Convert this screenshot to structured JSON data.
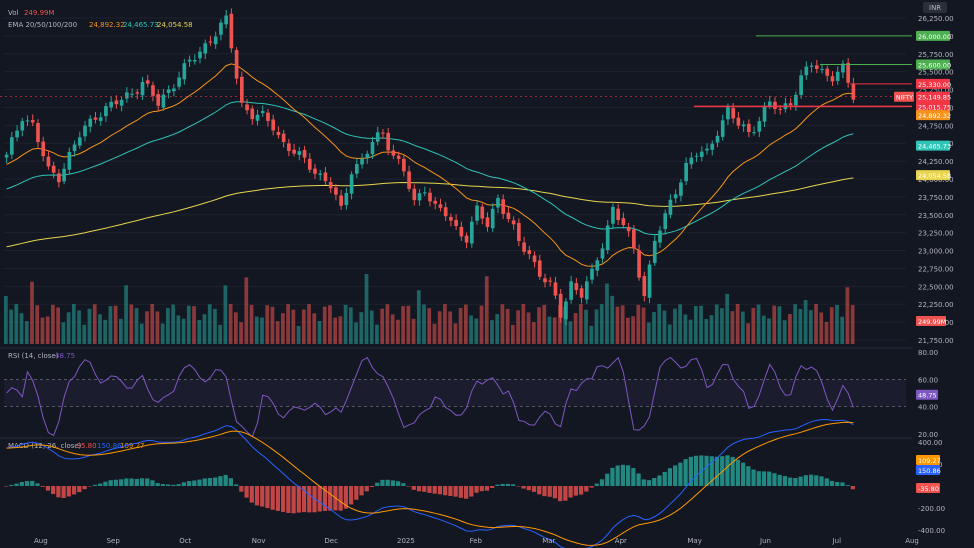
{
  "header": {
    "vol_label": "Vol",
    "vol_value": "249.99M",
    "ema_label": "EMA 20/50/100/200",
    "ema_values": [
      "24,892.32",
      "24,465.73",
      "24,054.58"
    ],
    "rsi_label": "RSI (14, close)",
    "rsi_value": "48.75",
    "macd_label": "MACD (12, 26, close)",
    "macd_values": [
      "-35.80",
      "150.86",
      "109.27"
    ],
    "currency": "INR"
  },
  "colors": {
    "background": "#131722",
    "up": "#26a69a",
    "down": "#ef5350",
    "ema20": "#f7931a",
    "ema50": "#2ec4b6",
    "ema200": "#e8d44d",
    "rsi": "#7e57c2",
    "macd_line": "#2962ff",
    "signal_line": "#ff9800",
    "green_line": "#4caf50",
    "red_line": "#f23645"
  },
  "chart_data": [
    {
      "type": "candlestick",
      "title": "",
      "x": [
        "Aug",
        "Sep",
        "Oct",
        "Nov",
        "Dec",
        "2025",
        "Feb",
        "Mar",
        "Apr",
        "May",
        "Jun",
        "Jul",
        "Aug"
      ],
      "ylim": [
        21750,
        26250
      ],
      "yticks": [
        26250,
        26000,
        25750,
        25500,
        25250,
        25000,
        24750,
        24500,
        24250,
        24000,
        23750,
        23500,
        23250,
        23000,
        22750,
        22500,
        22250,
        22000,
        21750
      ],
      "price_path": [
        [
          0,
          24300
        ],
        [
          3,
          24900
        ],
        [
          5,
          24750
        ],
        [
          8,
          24100
        ],
        [
          10,
          24050
        ],
        [
          14,
          24600
        ],
        [
          17,
          24900
        ],
        [
          22,
          25100
        ],
        [
          26,
          25350
        ],
        [
          29,
          25050
        ],
        [
          33,
          25450
        ],
        [
          36,
          25700
        ],
        [
          40,
          26050
        ],
        [
          42,
          26200
        ],
        [
          43,
          25850
        ],
        [
          45,
          25050
        ],
        [
          47,
          24900
        ],
        [
          49,
          24850
        ],
        [
          51,
          24750
        ],
        [
          53,
          24500
        ],
        [
          56,
          24300
        ],
        [
          58,
          24200
        ],
        [
          60,
          24050
        ],
        [
          62,
          23900
        ],
        [
          64,
          23550
        ],
        [
          66,
          24150
        ],
        [
          68,
          24250
        ],
        [
          70,
          24500
        ],
        [
          72,
          24650
        ],
        [
          74,
          24350
        ],
        [
          76,
          24100
        ],
        [
          78,
          23650
        ],
        [
          80,
          23900
        ],
        [
          82,
          23600
        ],
        [
          84,
          23500
        ],
        [
          86,
          23300
        ],
        [
          88,
          23200
        ],
        [
          90,
          23550
        ],
        [
          92,
          23350
        ],
        [
          94,
          23750
        ],
        [
          96,
          23450
        ],
        [
          98,
          23100
        ],
        [
          100,
          22950
        ],
        [
          102,
          22700
        ],
        [
          104,
          22500
        ],
        [
          106,
          22100
        ],
        [
          108,
          22550
        ],
        [
          110,
          22400
        ],
        [
          112,
          22650
        ],
        [
          114,
          23100
        ],
        [
          116,
          23600
        ],
        [
          118,
          23350
        ],
        [
          120,
          23000
        ],
        [
          122,
          22400
        ],
        [
          124,
          23150
        ],
        [
          126,
          23450
        ],
        [
          128,
          23850
        ],
        [
          130,
          24200
        ],
        [
          132,
          24350
        ],
        [
          134,
          24350
        ],
        [
          136,
          24700
        ],
        [
          138,
          24950
        ],
        [
          140,
          24750
        ],
        [
          142,
          24650
        ],
        [
          144,
          24850
        ],
        [
          146,
          25050
        ],
        [
          148,
          24950
        ],
        [
          150,
          25100
        ],
        [
          152,
          25400
        ],
        [
          154,
          25600
        ],
        [
          156,
          25500
        ],
        [
          158,
          25450
        ],
        [
          160,
          25520
        ],
        [
          161,
          25330
        ],
        [
          162,
          25150
        ]
      ],
      "volume_recent": "249.99M",
      "price_labels": [
        {
          "text": "26,000.00",
          "value": 26000,
          "color": "#4caf50"
        },
        {
          "text": "25,600.00",
          "value": 25600,
          "color": "#4caf50"
        },
        {
          "text": "25,330.00",
          "value": 25330,
          "color": "#f23645"
        },
        {
          "text": "25,149.85",
          "value": 25149.85,
          "color": "#f23645"
        },
        {
          "text": "25,015.75",
          "value": 25015.75,
          "color": "#f23645"
        },
        {
          "text": "24,892.32",
          "value": 24892.32,
          "color": "#f7931a"
        },
        {
          "text": "24,465.73",
          "value": 24465.73,
          "color": "#2ec4b6"
        },
        {
          "text": "24,054.58",
          "value": 24054.58,
          "color": "#e8d44d"
        }
      ],
      "symbol_label": "NIFTY",
      "volume_axis_label": "249.99M"
    },
    {
      "type": "line",
      "title": "RSI (14, close)",
      "ylim": [
        20,
        80
      ],
      "yticks": [
        80,
        60,
        40,
        20
      ],
      "levels": [
        60,
        40
      ],
      "last": "48.75"
    },
    {
      "type": "line",
      "title": "MACD (12, 26, close)",
      "ylim": [
        -400,
        400
      ],
      "yticks": [
        400,
        200,
        -200,
        -400
      ],
      "last_values": [
        "109.27",
        "150.86",
        "-35.80"
      ]
    }
  ]
}
